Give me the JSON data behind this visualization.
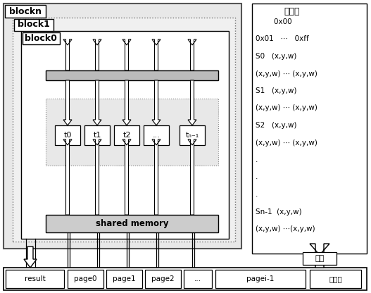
{
  "bg_color": "#ffffff",
  "fig_width": 5.27,
  "fig_height": 4.16,
  "dpi": 100,
  "blockn_label": "blockn",
  "block1_label": "block1",
  "block0_label": "block0",
  "shared_memory_label": "shared memory",
  "display_label": "显示",
  "server_label": "服务器",
  "results_set_label": "结果集",
  "thread_labels": [
    "t0",
    "t1",
    "t2",
    "...",
    "tₙ₋₁"
  ],
  "page_labels": [
    "result",
    "page0",
    "page1",
    "page2",
    "...",
    "pagei-1",
    "服务器"
  ],
  "result_set_lines": [
    [
      "        0x00",
      "center"
    ],
    [
      "0x01   ⋯   0xff",
      "left"
    ],
    [
      "S0   (x,y,w)",
      "left"
    ],
    [
      "(x,y,w) ⋯ (x,y,w)",
      "left"
    ],
    [
      "S1   (x,y,w)",
      "left"
    ],
    [
      "(x,y,w) ⋯ (x,y,w)",
      "left"
    ],
    [
      "S2   (x,y,w)",
      "left"
    ],
    [
      "(x,y,w) ⋯ (x,y,w)",
      "left"
    ],
    [
      ".",
      "left"
    ],
    [
      ".",
      "left"
    ],
    [
      ".",
      "left"
    ],
    [
      "Sn-1  (x,y,w)",
      "left"
    ],
    [
      "(x,y,w) ⋯(x,y,w)",
      "left"
    ]
  ]
}
